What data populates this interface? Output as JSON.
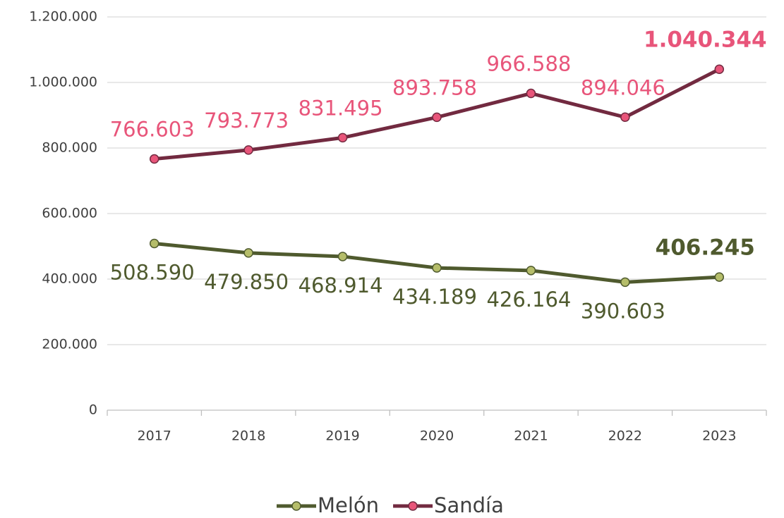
{
  "chart_data": {
    "type": "line",
    "categories": [
      "2017",
      "2018",
      "2019",
      "2020",
      "2021",
      "2022",
      "2023"
    ],
    "series": [
      {
        "name": "Melón",
        "color": "#4f5a2e",
        "marker_color": "#b5bd6a",
        "values": [
          508590,
          479850,
          468914,
          434189,
          426164,
          390603,
          406245
        ],
        "value_labels": [
          "508.590",
          "479.850",
          "468.914",
          "434.189",
          "426.164",
          "390.603",
          "406.245"
        ]
      },
      {
        "name": "Sandía",
        "color": "#722a40",
        "marker_color": "#e8557a",
        "label_color": "#e8557a",
        "values": [
          766603,
          793773,
          831495,
          893758,
          966588,
          894046,
          1040344
        ],
        "value_labels": [
          "766.603",
          "793.773",
          "831.495",
          "893.758",
          "966.588",
          "894.046",
          "1.040.344"
        ]
      }
    ],
    "ylim": [
      0,
      1200000
    ],
    "yticks": [
      0,
      {
        "value": 200000,
        "label": "200.000"
      },
      {
        "value": 400000,
        "label": "400.000"
      },
      {
        "value": 600000,
        "label": "600.000"
      },
      {
        "value": 800000,
        "label": "800.000"
      },
      {
        "value": 1000000,
        "label": "1.000.000"
      },
      {
        "value": 1200000,
        "label": "1.200.000"
      }
    ],
    "grid": true,
    "legend": "bottom"
  }
}
